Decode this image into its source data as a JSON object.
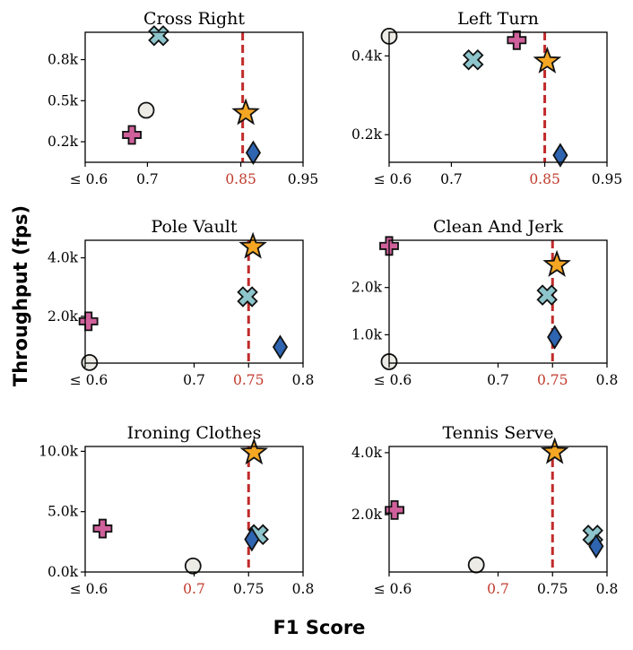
{
  "axes": {
    "xlabel": "F1 Score",
    "ylabel": "Throughput (fps)"
  },
  "colors": {
    "reference": "#c12a2a",
    "highlight_tick": "#c0392b"
  },
  "markers": {
    "circle": {
      "shape": "circle",
      "fill": "#ecebe6"
    },
    "plus": {
      "shape": "plus",
      "fill": "#d0609b"
    },
    "cross": {
      "shape": "cross",
      "fill": "#8ec5cc"
    },
    "star": {
      "shape": "star",
      "fill": "#f5a623"
    },
    "diamond": {
      "shape": "diamond",
      "fill": "#2e64b0"
    }
  },
  "chart_data": [
    {
      "type": "scatter",
      "title": "Cross Right",
      "xlim": [
        0.6,
        0.95
      ],
      "ylim": [
        50,
        1000
      ],
      "xticks": [
        {
          "v": 0.6,
          "label": "≤ 0.6"
        },
        {
          "v": 0.7,
          "label": "0.7"
        },
        {
          "v": 0.85,
          "label": "0.85",
          "highlight": true
        },
        {
          "v": 0.95,
          "label": "0.95"
        }
      ],
      "yticks": [
        {
          "v": 200,
          "label": "0.2k"
        },
        {
          "v": 500,
          "label": "0.5k"
        },
        {
          "v": 800,
          "label": "0.8k"
        }
      ],
      "ref_x": 0.853,
      "points": [
        {
          "marker": "cross",
          "x": 0.718,
          "y": 975
        },
        {
          "marker": "circle",
          "x": 0.698,
          "y": 430
        },
        {
          "marker": "plus",
          "x": 0.675,
          "y": 250
        },
        {
          "marker": "star",
          "x": 0.858,
          "y": 410
        },
        {
          "marker": "diamond",
          "x": 0.87,
          "y": 120
        }
      ]
    },
    {
      "type": "scatter",
      "title": "Left Turn",
      "xlim": [
        0.6,
        0.95
      ],
      "ylim": [
        0.13,
        0.46
      ],
      "xticks": [
        {
          "v": 0.6,
          "label": "≤ 0.6"
        },
        {
          "v": 0.7,
          "label": "0.7"
        },
        {
          "v": 0.85,
          "label": "0.85",
          "highlight": true
        },
        {
          "v": 0.95,
          "label": "0.95"
        }
      ],
      "yticks": [
        {
          "v": 0.2,
          "label": "0.2k"
        },
        {
          "v": 0.4,
          "label": "0.4k"
        }
      ],
      "ref_x": 0.85,
      "points": [
        {
          "marker": "circle",
          "x": 0.6,
          "y": 0.45
        },
        {
          "marker": "plus",
          "x": 0.805,
          "y": 0.44
        },
        {
          "marker": "cross",
          "x": 0.735,
          "y": 0.39
        },
        {
          "marker": "star",
          "x": 0.854,
          "y": 0.386
        },
        {
          "marker": "diamond",
          "x": 0.875,
          "y": 0.148
        }
      ]
    },
    {
      "type": "scatter",
      "title": "Pole Vault",
      "xlim": [
        0.6,
        0.8
      ],
      "ylim": [
        400,
        4600
      ],
      "xticks": [
        {
          "v": 0.6,
          "label": "≤ 0.6"
        },
        {
          "v": 0.7,
          "label": "0.7"
        },
        {
          "v": 0.75,
          "label": "0.75",
          "highlight": true
        },
        {
          "v": 0.8,
          "label": "0.8"
        }
      ],
      "yticks": [
        {
          "v": 2000,
          "label": "2.0k"
        },
        {
          "v": 4000,
          "label": "4.0k"
        }
      ],
      "ref_x": 0.75,
      "points": [
        {
          "marker": "star",
          "x": 0.754,
          "y": 4380
        },
        {
          "marker": "cross",
          "x": 0.749,
          "y": 2670
        },
        {
          "marker": "plus",
          "x": 0.603,
          "y": 1830
        },
        {
          "marker": "diamond",
          "x": 0.779,
          "y": 950
        },
        {
          "marker": "circle",
          "x": 0.604,
          "y": 420
        }
      ]
    },
    {
      "type": "scatter",
      "title": "Clean And Jerk",
      "xlim": [
        0.6,
        0.8
      ],
      "ylim": [
        400,
        3000
      ],
      "xticks": [
        {
          "v": 0.6,
          "label": "≤ 0.6"
        },
        {
          "v": 0.7,
          "label": "0.7"
        },
        {
          "v": 0.75,
          "label": "0.75",
          "highlight": true
        },
        {
          "v": 0.8,
          "label": "0.8"
        }
      ],
      "yticks": [
        {
          "v": 1000,
          "label": "1.0k"
        },
        {
          "v": 2000,
          "label": "2.0k"
        }
      ],
      "ref_x": 0.75,
      "points": [
        {
          "marker": "plus",
          "x": 0.6,
          "y": 2880
        },
        {
          "marker": "star",
          "x": 0.754,
          "y": 2480
        },
        {
          "marker": "cross",
          "x": 0.745,
          "y": 1840
        },
        {
          "marker": "diamond",
          "x": 0.752,
          "y": 950
        },
        {
          "marker": "circle",
          "x": 0.6,
          "y": 430
        }
      ]
    },
    {
      "type": "scatter",
      "title": "Ironing Clothes",
      "xlim": [
        0.6,
        0.8
      ],
      "ylim": [
        0,
        10400
      ],
      "xticks": [
        {
          "v": 0.6,
          "label": "≤ 0.6"
        },
        {
          "v": 0.7,
          "label": "0.7",
          "highlight": true
        },
        {
          "v": 0.75,
          "label": "0.75"
        },
        {
          "v": 0.8,
          "label": "0.8"
        }
      ],
      "yticks": [
        {
          "v": 0,
          "label": "0.0k"
        },
        {
          "v": 5000,
          "label": "5.0k"
        },
        {
          "v": 10000,
          "label": "10.0k"
        }
      ],
      "ref_x": 0.75,
      "points": [
        {
          "marker": "star",
          "x": 0.755,
          "y": 9900
        },
        {
          "marker": "plus",
          "x": 0.616,
          "y": 3600
        },
        {
          "marker": "cross",
          "x": 0.759,
          "y": 3100
        },
        {
          "marker": "diamond",
          "x": 0.753,
          "y": 2700
        },
        {
          "marker": "circle",
          "x": 0.699,
          "y": 500
        }
      ]
    },
    {
      "type": "scatter",
      "title": "Tennis Serve",
      "xlim": [
        0.6,
        0.8
      ],
      "ylim": [
        150,
        4200
      ],
      "xticks": [
        {
          "v": 0.6,
          "label": "≤ 0.6"
        },
        {
          "v": 0.7,
          "label": "0.7",
          "highlight": true
        },
        {
          "v": 0.75,
          "label": "0.75"
        },
        {
          "v": 0.8,
          "label": "0.8"
        }
      ],
      "yticks": [
        {
          "v": 2000,
          "label": "2.0k"
        },
        {
          "v": 4000,
          "label": "4.0k"
        }
      ],
      "ref_x": 0.75,
      "points": [
        {
          "marker": "star",
          "x": 0.752,
          "y": 4020
        },
        {
          "marker": "plus",
          "x": 0.605,
          "y": 2150
        },
        {
          "marker": "cross",
          "x": 0.787,
          "y": 1340
        },
        {
          "marker": "diamond",
          "x": 0.79,
          "y": 980
        },
        {
          "marker": "circle",
          "x": 0.68,
          "y": 380
        }
      ]
    }
  ]
}
